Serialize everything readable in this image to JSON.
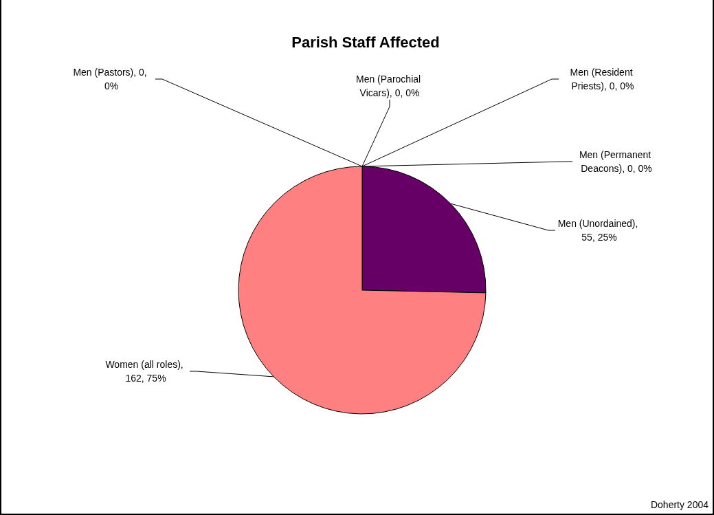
{
  "chart_data": {
    "type": "pie",
    "title": "Parish Staff Affected",
    "categories": [
      "Men (Pastors)",
      "Men (Parochial Vicars)",
      "Men (Resident Priests)",
      "Men (Permanent Deacons)",
      "Men (Unordained)",
      "Women (all roles)"
    ],
    "values": [
      0,
      0,
      0,
      0,
      55,
      162
    ],
    "colors": [
      "#9999ff",
      "#993366",
      "#ffffcc",
      "#ccffff",
      "#660066",
      "#ff8080"
    ],
    "value_labels": [
      ", 0, 0%",
      ", 0, 0%",
      ", 0, 0%",
      ", 0, 0%",
      ", 55, 25%",
      ", 162, 75%"
    ],
    "annotations": [
      "Doherty 2004"
    ]
  }
}
